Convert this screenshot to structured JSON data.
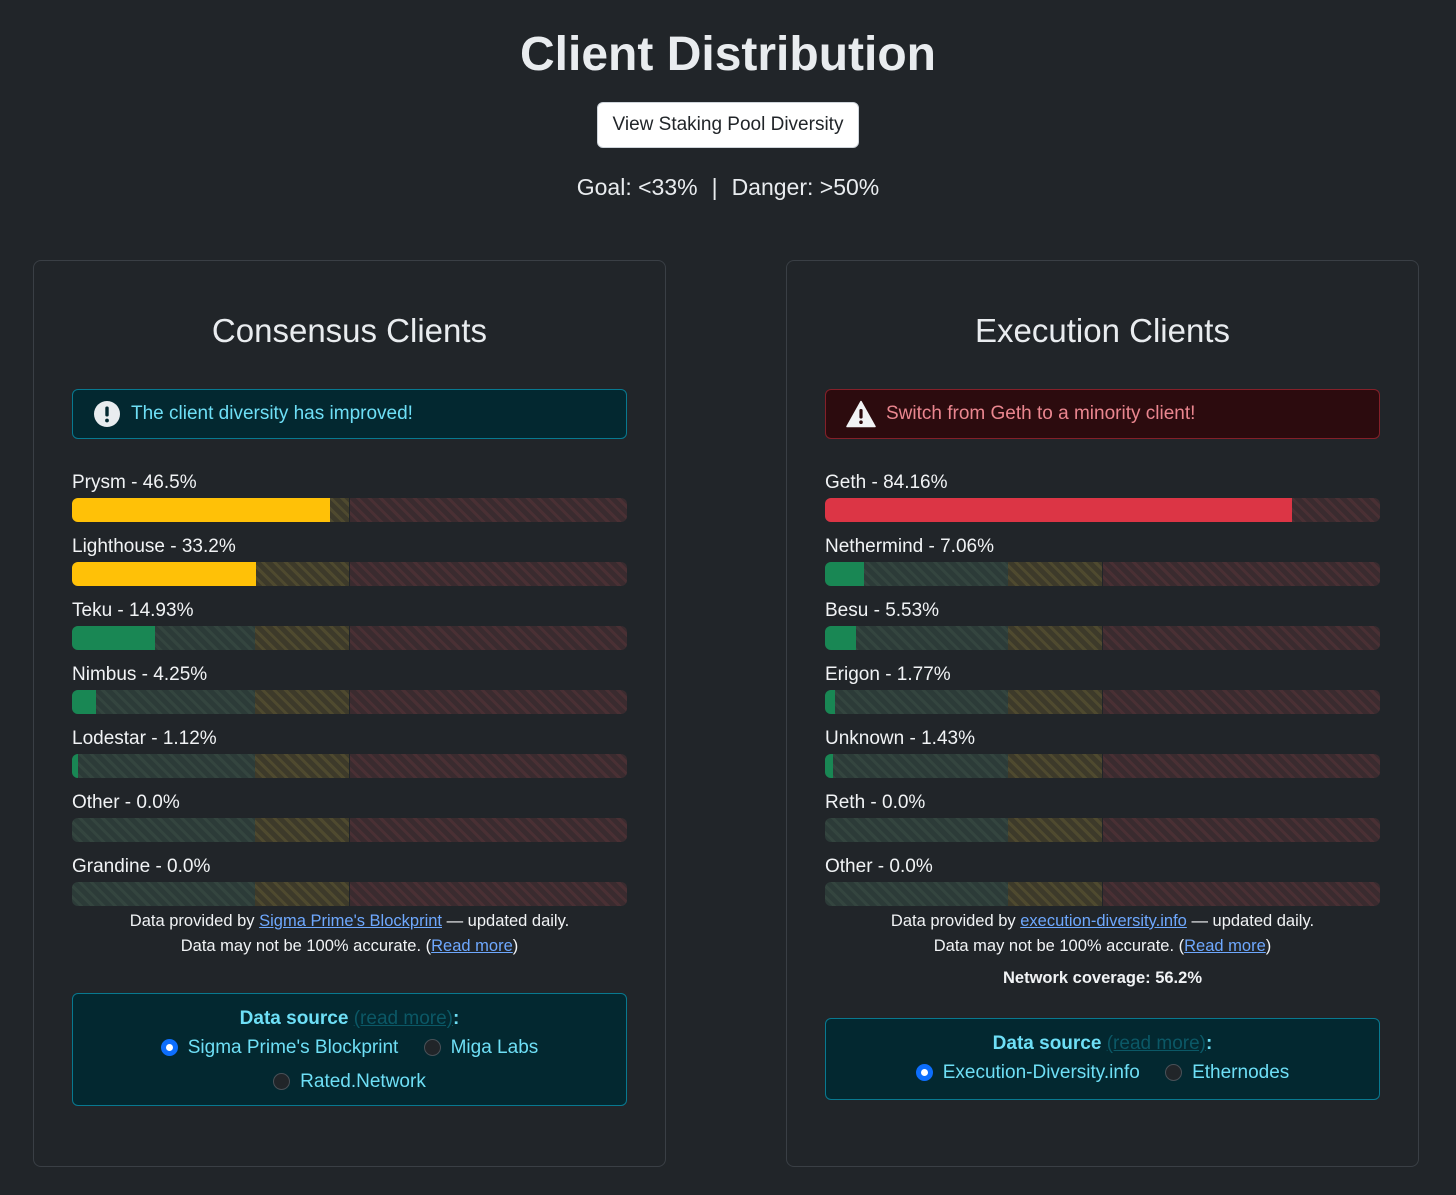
{
  "page": {
    "title": "Client Distribution",
    "pool_button": "View Staking Pool Diversity",
    "goal": "Goal: <33%",
    "separator": "|",
    "danger": "Danger: >50%"
  },
  "colors": {
    "yellow": "#ffc107",
    "green": "#198754",
    "red": "#dc3545",
    "zone_green": "#2c3b38",
    "zone_yellow": "#3d3a2a",
    "zone_red": "#3a2b2f"
  },
  "consensus": {
    "title": "Consensus Clients",
    "alert": "The client diversity has improved!",
    "clients": [
      {
        "label": "Prysm - 46.5%",
        "value": 46.5,
        "color": "yellow"
      },
      {
        "label": "Lighthouse - 33.2%",
        "value": 33.2,
        "color": "yellow"
      },
      {
        "label": "Teku - 14.93%",
        "value": 14.93,
        "color": "green"
      },
      {
        "label": "Nimbus - 4.25%",
        "value": 4.25,
        "color": "green"
      },
      {
        "label": "Lodestar - 1.12%",
        "value": 1.12,
        "color": "green"
      },
      {
        "label": "Other - 0.0%",
        "value": 0.0,
        "color": "green"
      },
      {
        "label": "Grandine - 0.0%",
        "value": 0.0,
        "color": "green"
      }
    ],
    "foot": {
      "pre": "Data provided by ",
      "link": "Sigma Prime's Blockprint",
      "post": " — updated daily.",
      "line2_pre": "Data may not be 100% accurate. (",
      "read_more": "Read more",
      "line2_post": ")"
    },
    "source": {
      "label": "Data source",
      "read_more": "(read more)",
      "colon": ":",
      "options": [
        "Sigma Prime's Blockprint",
        "Miga Labs",
        "Rated.Network"
      ],
      "selected": "Sigma Prime's Blockprint"
    }
  },
  "execution": {
    "title": "Execution Clients",
    "alert": "Switch from Geth to a minority client!",
    "clients": [
      {
        "label": "Geth - 84.16%",
        "value": 84.16,
        "color": "red"
      },
      {
        "label": "Nethermind - 7.06%",
        "value": 7.06,
        "color": "green"
      },
      {
        "label": "Besu - 5.53%",
        "value": 5.53,
        "color": "green"
      },
      {
        "label": "Erigon - 1.77%",
        "value": 1.77,
        "color": "green"
      },
      {
        "label": "Unknown - 1.43%",
        "value": 1.43,
        "color": "green"
      },
      {
        "label": "Reth - 0.0%",
        "value": 0.0,
        "color": "green"
      },
      {
        "label": "Other - 0.0%",
        "value": 0.0,
        "color": "green"
      }
    ],
    "foot": {
      "pre": "Data provided by ",
      "link": "execution-diversity.info",
      "post": " — updated daily.",
      "line2_pre": "Data may not be 100% accurate. (",
      "read_more": "Read more",
      "line2_post": ")"
    },
    "coverage": "Network coverage: 56.2%",
    "source": {
      "label": "Data source",
      "read_more": "(read more)",
      "colon": ":",
      "options": [
        "Execution-Diversity.info",
        "Ethernodes"
      ],
      "selected": "Execution-Diversity.info"
    }
  }
}
